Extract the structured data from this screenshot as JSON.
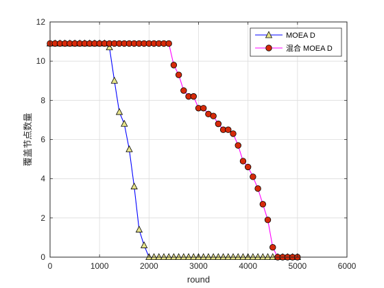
{
  "chart_data": {
    "type": "line",
    "title": "",
    "xlabel": "round",
    "ylabel": "覆盖节点数量",
    "xlim": [
      0,
      6000
    ],
    "ylim": [
      0,
      12
    ],
    "xticks": [
      0,
      1000,
      2000,
      3000,
      4000,
      5000,
      6000
    ],
    "yticks": [
      0,
      2,
      4,
      6,
      8,
      10,
      12
    ],
    "xtick_labels": [
      "0",
      "1000",
      "2000",
      "3000",
      "4000",
      "5000",
      "6000"
    ],
    "ytick_labels": [
      "0",
      "2",
      "4",
      "6",
      "8",
      "10",
      "12"
    ],
    "grid": true,
    "legend_position": "top-right",
    "series": [
      {
        "name": "MOEA D",
        "color": "#0000ff",
        "marker": "triangle",
        "marker_fill": "#e6e38a",
        "x": [
          0,
          100,
          200,
          300,
          400,
          500,
          600,
          700,
          800,
          900,
          1000,
          1100,
          1200,
          1300,
          1400,
          1500,
          1600,
          1700,
          1800,
          1900,
          2000,
          2100,
          2200,
          2300,
          2400,
          2500,
          2600,
          2700,
          2800,
          2900,
          3000,
          3100,
          3200,
          3300,
          3400,
          3500,
          3600,
          3700,
          3800,
          3900,
          4000,
          4100,
          4200,
          4300,
          4400,
          4500,
          4600,
          4700,
          4800,
          4900,
          5000
        ],
        "y": [
          10.9,
          10.9,
          10.9,
          10.9,
          10.9,
          10.9,
          10.9,
          10.9,
          10.9,
          10.9,
          10.9,
          10.9,
          10.7,
          9.0,
          7.4,
          6.8,
          5.5,
          3.6,
          1.4,
          0.6,
          0,
          0,
          0,
          0,
          0,
          0,
          0,
          0,
          0,
          0,
          0,
          0,
          0,
          0,
          0,
          0,
          0,
          0,
          0,
          0,
          0,
          0,
          0,
          0,
          0,
          0,
          0,
          0,
          0,
          0,
          0
        ]
      },
      {
        "name": "混合 MOEA D",
        "color": "#ff00ff",
        "marker": "circle",
        "marker_fill": "#d62a0a",
        "x": [
          0,
          100,
          200,
          300,
          400,
          500,
          600,
          700,
          800,
          900,
          1000,
          1100,
          1200,
          1300,
          1400,
          1500,
          1600,
          1700,
          1800,
          1900,
          2000,
          2100,
          2200,
          2300,
          2400,
          2500,
          2600,
          2700,
          2800,
          2900,
          3000,
          3100,
          3200,
          3300,
          3400,
          3500,
          3600,
          3700,
          3800,
          3900,
          4000,
          4100,
          4200,
          4300,
          4400,
          4500,
          4600,
          4700,
          4800,
          4900,
          5000
        ],
        "y": [
          10.9,
          10.9,
          10.9,
          10.9,
          10.9,
          10.9,
          10.9,
          10.9,
          10.9,
          10.9,
          10.9,
          10.9,
          10.9,
          10.9,
          10.9,
          10.9,
          10.9,
          10.9,
          10.9,
          10.9,
          10.9,
          10.9,
          10.9,
          10.9,
          10.9,
          9.8,
          9.3,
          8.5,
          8.2,
          8.2,
          7.6,
          7.6,
          7.3,
          7.2,
          6.8,
          6.5,
          6.5,
          6.3,
          5.7,
          4.9,
          4.6,
          4.1,
          3.5,
          2.7,
          1.9,
          0.5,
          0,
          0,
          0,
          0,
          0
        ]
      }
    ]
  }
}
